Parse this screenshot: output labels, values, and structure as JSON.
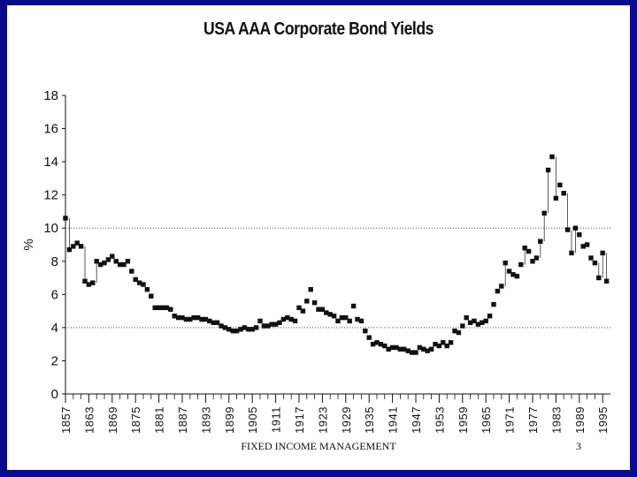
{
  "slide": {
    "footer": "FIXED INCOME MANAGEMENT",
    "page_number": "3",
    "background": "#0a0a8c"
  },
  "chart_data": {
    "type": "scatter",
    "title": "USA AAA Corporate Bond Yields",
    "xlabel": "",
    "ylabel": "%",
    "xlim": [
      1857,
      1997
    ],
    "ylim": [
      0,
      18
    ],
    "y_ticks": [
      0,
      2,
      4,
      6,
      8,
      10,
      12,
      14,
      16,
      18
    ],
    "x_ticks": [
      1857,
      1863,
      1869,
      1875,
      1881,
      1887,
      1893,
      1899,
      1905,
      1911,
      1917,
      1923,
      1929,
      1935,
      1941,
      1947,
      1953,
      1959,
      1965,
      1971,
      1977,
      1983,
      1989,
      1995
    ],
    "gridlines_y": [
      4,
      10
    ],
    "marker_color": "#111111",
    "series": [
      {
        "points": [
          [
            1857,
            10.6
          ],
          [
            1858,
            8.7
          ],
          [
            1859,
            8.9
          ],
          [
            1860,
            9.1
          ],
          [
            1861,
            8.9
          ],
          [
            1862,
            6.8
          ],
          [
            1863,
            6.6
          ],
          [
            1864,
            6.7
          ],
          [
            1865,
            8.0
          ],
          [
            1866,
            7.8
          ],
          [
            1867,
            7.9
          ],
          [
            1868,
            8.1
          ],
          [
            1869,
            8.3
          ],
          [
            1870,
            8.0
          ],
          [
            1871,
            7.8
          ],
          [
            1872,
            7.8
          ],
          [
            1873,
            8.0
          ],
          [
            1874,
            7.4
          ],
          [
            1875,
            6.9
          ],
          [
            1876,
            6.7
          ],
          [
            1877,
            6.6
          ],
          [
            1878,
            6.3
          ],
          [
            1879,
            5.9
          ],
          [
            1880,
            5.2
          ],
          [
            1881,
            5.2
          ],
          [
            1882,
            5.2
          ],
          [
            1883,
            5.2
          ],
          [
            1884,
            5.1
          ],
          [
            1885,
            4.7
          ],
          [
            1886,
            4.6
          ],
          [
            1887,
            4.6
          ],
          [
            1888,
            4.5
          ],
          [
            1889,
            4.5
          ],
          [
            1890,
            4.6
          ],
          [
            1891,
            4.6
          ],
          [
            1892,
            4.5
          ],
          [
            1893,
            4.5
          ],
          [
            1894,
            4.4
          ],
          [
            1895,
            4.3
          ],
          [
            1896,
            4.3
          ],
          [
            1897,
            4.1
          ],
          [
            1898,
            4.0
          ],
          [
            1899,
            3.9
          ],
          [
            1900,
            3.8
          ],
          [
            1901,
            3.8
          ],
          [
            1902,
            3.9
          ],
          [
            1903,
            4.0
          ],
          [
            1904,
            3.9
          ],
          [
            1905,
            3.9
          ],
          [
            1906,
            4.0
          ],
          [
            1907,
            4.4
          ],
          [
            1908,
            4.1
          ],
          [
            1909,
            4.1
          ],
          [
            1910,
            4.2
          ],
          [
            1911,
            4.2
          ],
          [
            1912,
            4.3
          ],
          [
            1913,
            4.5
          ],
          [
            1914,
            4.6
          ],
          [
            1915,
            4.5
          ],
          [
            1916,
            4.4
          ],
          [
            1917,
            5.2
          ],
          [
            1918,
            5.0
          ],
          [
            1919,
            5.6
          ],
          [
            1920,
            6.3
          ],
          [
            1921,
            5.5
          ],
          [
            1922,
            5.1
          ],
          [
            1923,
            5.1
          ],
          [
            1924,
            4.9
          ],
          [
            1925,
            4.8
          ],
          [
            1926,
            4.7
          ],
          [
            1927,
            4.4
          ],
          [
            1928,
            4.6
          ],
          [
            1929,
            4.6
          ],
          [
            1930,
            4.4
          ],
          [
            1931,
            5.3
          ],
          [
            1932,
            4.5
          ],
          [
            1933,
            4.4
          ],
          [
            1934,
            3.8
          ],
          [
            1935,
            3.4
          ],
          [
            1936,
            3.0
          ],
          [
            1937,
            3.1
          ],
          [
            1938,
            3.0
          ],
          [
            1939,
            2.9
          ],
          [
            1940,
            2.7
          ],
          [
            1941,
            2.8
          ],
          [
            1942,
            2.8
          ],
          [
            1943,
            2.7
          ],
          [
            1944,
            2.7
          ],
          [
            1945,
            2.6
          ],
          [
            1946,
            2.5
          ],
          [
            1947,
            2.5
          ],
          [
            1948,
            2.8
          ],
          [
            1949,
            2.7
          ],
          [
            1950,
            2.6
          ],
          [
            1951,
            2.7
          ],
          [
            1952,
            3.0
          ],
          [
            1953,
            2.9
          ],
          [
            1954,
            3.1
          ],
          [
            1955,
            2.9
          ],
          [
            1956,
            3.1
          ],
          [
            1957,
            3.8
          ],
          [
            1958,
            3.7
          ],
          [
            1959,
            4.1
          ],
          [
            1960,
            4.6
          ],
          [
            1961,
            4.3
          ],
          [
            1962,
            4.4
          ],
          [
            1963,
            4.2
          ],
          [
            1964,
            4.3
          ],
          [
            1965,
            4.4
          ],
          [
            1966,
            4.7
          ],
          [
            1967,
            5.4
          ],
          [
            1968,
            6.2
          ],
          [
            1969,
            6.5
          ],
          [
            1970,
            7.9
          ],
          [
            1971,
            7.4
          ],
          [
            1972,
            7.2
          ],
          [
            1973,
            7.1
          ],
          [
            1974,
            7.8
          ],
          [
            1975,
            8.8
          ],
          [
            1976,
            8.6
          ],
          [
            1977,
            8.0
          ],
          [
            1978,
            8.2
          ],
          [
            1979,
            9.2
          ],
          [
            1980,
            10.9
          ],
          [
            1981,
            13.5
          ],
          [
            1982,
            14.3
          ],
          [
            1983,
            11.8
          ],
          [
            1984,
            12.6
          ],
          [
            1985,
            12.1
          ],
          [
            1986,
            9.9
          ],
          [
            1987,
            8.5
          ],
          [
            1988,
            10.0
          ],
          [
            1989,
            9.6
          ],
          [
            1990,
            8.9
          ],
          [
            1991,
            9.0
          ],
          [
            1992,
            8.2
          ],
          [
            1993,
            7.9
          ],
          [
            1994,
            7.0
          ],
          [
            1995,
            8.5
          ],
          [
            1996,
            6.8
          ]
        ]
      }
    ]
  }
}
